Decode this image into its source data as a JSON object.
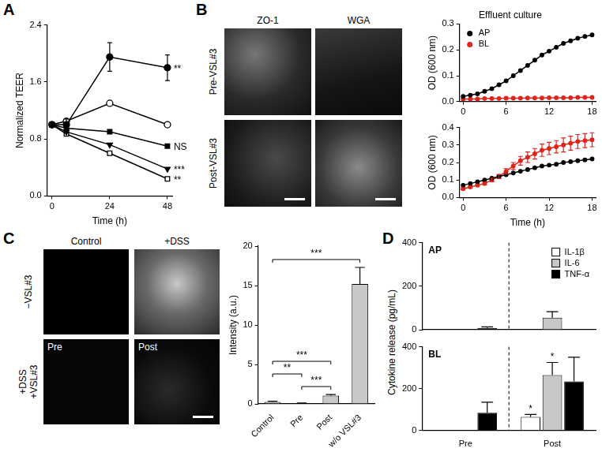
{
  "panel_labels": [
    "A",
    "B",
    "C",
    "D"
  ],
  "images": {
    "B": {
      "columns": [
        "ZO-1",
        "WGA"
      ],
      "rows": [
        "Pre-VSL#3",
        "Post-VSL#3"
      ]
    },
    "C": {
      "columns": [
        "Control",
        "+DSS"
      ],
      "rows": [
        "−VSL#3",
        "+DSS\n+VSL#3"
      ],
      "inner_labels": [
        [
          null,
          null
        ],
        [
          "Pre",
          "Post"
        ]
      ]
    }
  },
  "chart_data": [
    {
      "type": "line",
      "xlabel": "Time (h)",
      "ylabel": "Normalized TEER",
      "x": [
        0,
        6,
        24,
        48
      ],
      "xlim": [
        -2,
        50
      ],
      "xticks": [
        0,
        24,
        48
      ],
      "ylim": [
        0,
        2.4
      ],
      "yticks": [
        {
          "value": 0,
          "label": "0.0"
        },
        0.8,
        1.6,
        2.4
      ],
      "grid": false,
      "series": [
        {
          "color": "#000000",
          "marker": "circle",
          "values": [
            1.0,
            1.0,
            1.95,
            1.8
          ],
          "errors": [
            0,
            0.08,
            0.2,
            0.18
          ],
          "annotation": "**"
        },
        {
          "color": "#000000",
          "marker": "open-circle",
          "values": [
            1.0,
            1.05,
            1.3,
            1.0
          ]
        },
        {
          "color": "#000000",
          "marker": "square",
          "values": [
            1.0,
            0.95,
            0.9,
            0.7
          ],
          "annotation": "NS"
        },
        {
          "color": "#000000",
          "marker": "triangle-down",
          "values": [
            1.0,
            0.9,
            0.72,
            0.38
          ],
          "annotation": "***"
        },
        {
          "color": "#000000",
          "marker": "open-square",
          "values": [
            1.0,
            0.87,
            0.6,
            0.24
          ],
          "annotation": "**"
        }
      ]
    },
    {
      "type": "line",
      "title": "Effluent culture",
      "ylabel": "OD (600 nm)",
      "x": [
        0,
        1,
        2,
        3,
        4,
        5,
        6,
        7,
        8,
        9,
        10,
        11,
        12,
        13,
        14,
        15,
        16,
        17,
        18
      ],
      "xlim": [
        -0.5,
        18.5
      ],
      "xticks": [
        0,
        6,
        12,
        18
      ],
      "ylim": [
        0,
        0.3
      ],
      "yticks": [
        {
          "value": 0,
          "label": "0.0"
        },
        0.1,
        0.2,
        0.3
      ],
      "grid": false,
      "legend": "top-left",
      "series": [
        {
          "name": "AP",
          "color": "#000000",
          "marker": "circle",
          "values": [
            0.02,
            0.025,
            0.03,
            0.04,
            0.05,
            0.065,
            0.08,
            0.1,
            0.12,
            0.14,
            0.16,
            0.18,
            0.195,
            0.21,
            0.225,
            0.235,
            0.245,
            0.252,
            0.258
          ]
        },
        {
          "name": "BL",
          "color": "#e0241b",
          "marker": "circle",
          "values": [
            0.01,
            0.01,
            0.01,
            0.012,
            0.012,
            0.012,
            0.013,
            0.013,
            0.013,
            0.014,
            0.014,
            0.014,
            0.015,
            0.015,
            0.015,
            0.015,
            0.016,
            0.016,
            0.016
          ]
        }
      ]
    },
    {
      "type": "line",
      "xlabel": "Time (h)",
      "ylabel": "OD (600 nm)",
      "x": [
        0,
        1,
        2,
        3,
        4,
        5,
        6,
        7,
        8,
        9,
        10,
        11,
        12,
        13,
        14,
        15,
        16,
        17,
        18
      ],
      "xlim": [
        -0.5,
        18.5
      ],
      "xticks": [
        0,
        6,
        12,
        18
      ],
      "ylim": [
        0,
        0.4
      ],
      "yticks": [
        {
          "value": 0,
          "label": "0.0"
        },
        0.1,
        0.2,
        0.3,
        0.4
      ],
      "grid": false,
      "series": [
        {
          "color": "#000000",
          "marker": "circle",
          "values": [
            0.07,
            0.08,
            0.09,
            0.1,
            0.11,
            0.12,
            0.13,
            0.14,
            0.15,
            0.16,
            0.17,
            0.18,
            0.185,
            0.19,
            0.2,
            0.205,
            0.21,
            0.215,
            0.22
          ]
        },
        {
          "color": "#e0241b",
          "marker": "circle",
          "values": [
            0.05,
            0.06,
            0.07,
            0.08,
            0.1,
            0.12,
            0.15,
            0.18,
            0.21,
            0.23,
            0.25,
            0.27,
            0.28,
            0.29,
            0.3,
            0.31,
            0.32,
            0.325,
            0.33
          ],
          "errors": [
            0.005,
            0.005,
            0.005,
            0.008,
            0.01,
            0.012,
            0.015,
            0.02,
            0.025,
            0.03,
            0.03,
            0.035,
            0.035,
            0.035,
            0.04,
            0.04,
            0.04,
            0.04,
            0.04
          ]
        }
      ]
    },
    {
      "type": "bar",
      "categories": [
        "Control",
        "Pre",
        "Post",
        "w/o VSL#3"
      ],
      "values": [
        0.25,
        0.08,
        1.05,
        15.2
      ],
      "errors": [
        0.1,
        0.04,
        0.15,
        2.1
      ],
      "color": "#c8c8c8",
      "ylabel": "Intensity (a.u.)",
      "ylim": [
        0,
        20
      ],
      "yticks": [
        0,
        5,
        10,
        15,
        20
      ],
      "grid": false,
      "significance": [
        {
          "from": "Pre",
          "to": "Post",
          "label": "***"
        },
        {
          "from": "Control",
          "to": "Pre",
          "label": "**"
        },
        {
          "from": "Control",
          "to": "Post",
          "label": "***"
        },
        {
          "from": "Control",
          "to": "w/o VSL#3",
          "label": "***"
        }
      ]
    },
    {
      "type": "bar",
      "title": "AP",
      "categories": [
        "Pre",
        "Post"
      ],
      "ylabel": "Cytokine release (pg/mL)",
      "ylim": [
        0,
        400
      ],
      "yticks": [
        0,
        200,
        400
      ],
      "grid": false,
      "tick_labels": "y",
      "legend": "top-right",
      "series": [
        {
          "name": "IL-1β",
          "color": "#ffffff",
          "values": [
            0,
            0
          ],
          "errors": [
            0,
            0
          ]
        },
        {
          "name": "IL-6",
          "color": "#c8c8c8",
          "values": [
            0,
            55
          ],
          "errors": [
            0,
            28
          ]
        },
        {
          "name": "TNF-α",
          "color": "#000000",
          "values": [
            8,
            0
          ],
          "errors": [
            5,
            0
          ]
        }
      ]
    },
    {
      "type": "bar",
      "title": "BL",
      "categories": [
        "Pre",
        "Post"
      ],
      "ylim": [
        0,
        400
      ],
      "yticks": [
        0,
        200,
        400
      ],
      "grid": false,
      "series": [
        {
          "color": "#ffffff",
          "values": [
            0,
            65
          ],
          "errors": [
            0,
            12
          ],
          "annotations": [
            null,
            "*"
          ]
        },
        {
          "color": "#c8c8c8",
          "values": [
            0,
            265
          ],
          "errors": [
            0,
            60
          ],
          "annotations": [
            null,
            "*"
          ]
        },
        {
          "color": "#000000",
          "values": [
            85,
            235
          ],
          "errors": [
            50,
            115
          ]
        }
      ]
    }
  ]
}
